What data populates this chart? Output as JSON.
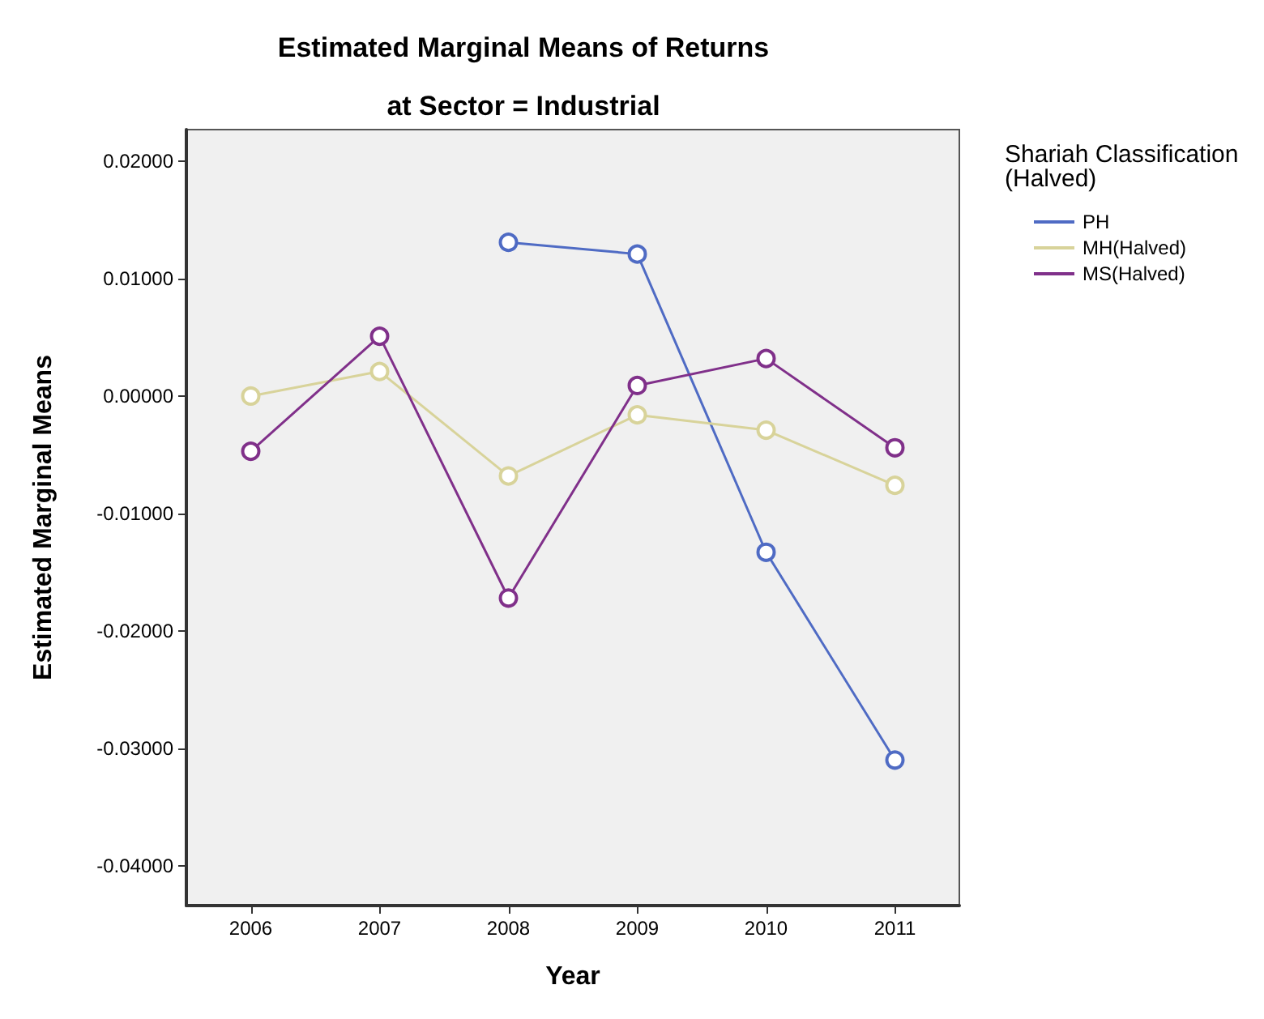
{
  "chart_data": {
    "type": "line",
    "title": "Estimated Marginal Means of Returns",
    "subtitle": "at Sector = Industrial",
    "xlabel": "Year",
    "ylabel": "Estimated Marginal Means",
    "legend_title": "Shariah Classification\n(Halved)",
    "legend": "right",
    "marker": "circle",
    "grid": false,
    "categories": [
      "2006",
      "2007",
      "2008",
      "2009",
      "2010",
      "2011"
    ],
    "series": [
      {
        "name": "PH",
        "color": "#4f6bc4",
        "values": [
          null,
          null,
          0.0131,
          0.0121,
          -0.0133,
          -0.031
        ]
      },
      {
        "name": "MH(Halved)",
        "color": "#d8d39a",
        "values": [
          0.0,
          0.0021,
          -0.0068,
          -0.0016,
          -0.0029,
          -0.0076
        ]
      },
      {
        "name": "MS(Halved)",
        "color": "#80308a",
        "values": [
          -0.0047,
          0.0051,
          -0.0172,
          0.0009,
          0.0032,
          -0.0044
        ]
      }
    ],
    "ylim": [
      -0.0434,
      0.0227
    ],
    "yticks": [
      {
        "value": -0.04,
        "label": "-0.04000"
      },
      {
        "value": -0.03,
        "label": "-0.03000"
      },
      {
        "value": -0.02,
        "label": "-0.02000"
      },
      {
        "value": -0.01,
        "label": "-0.01000"
      },
      {
        "value": 0,
        "label": "0.00000"
      },
      {
        "value": 0.01,
        "label": "0.01000"
      },
      {
        "value": 0.02,
        "label": "0.02000"
      }
    ]
  }
}
